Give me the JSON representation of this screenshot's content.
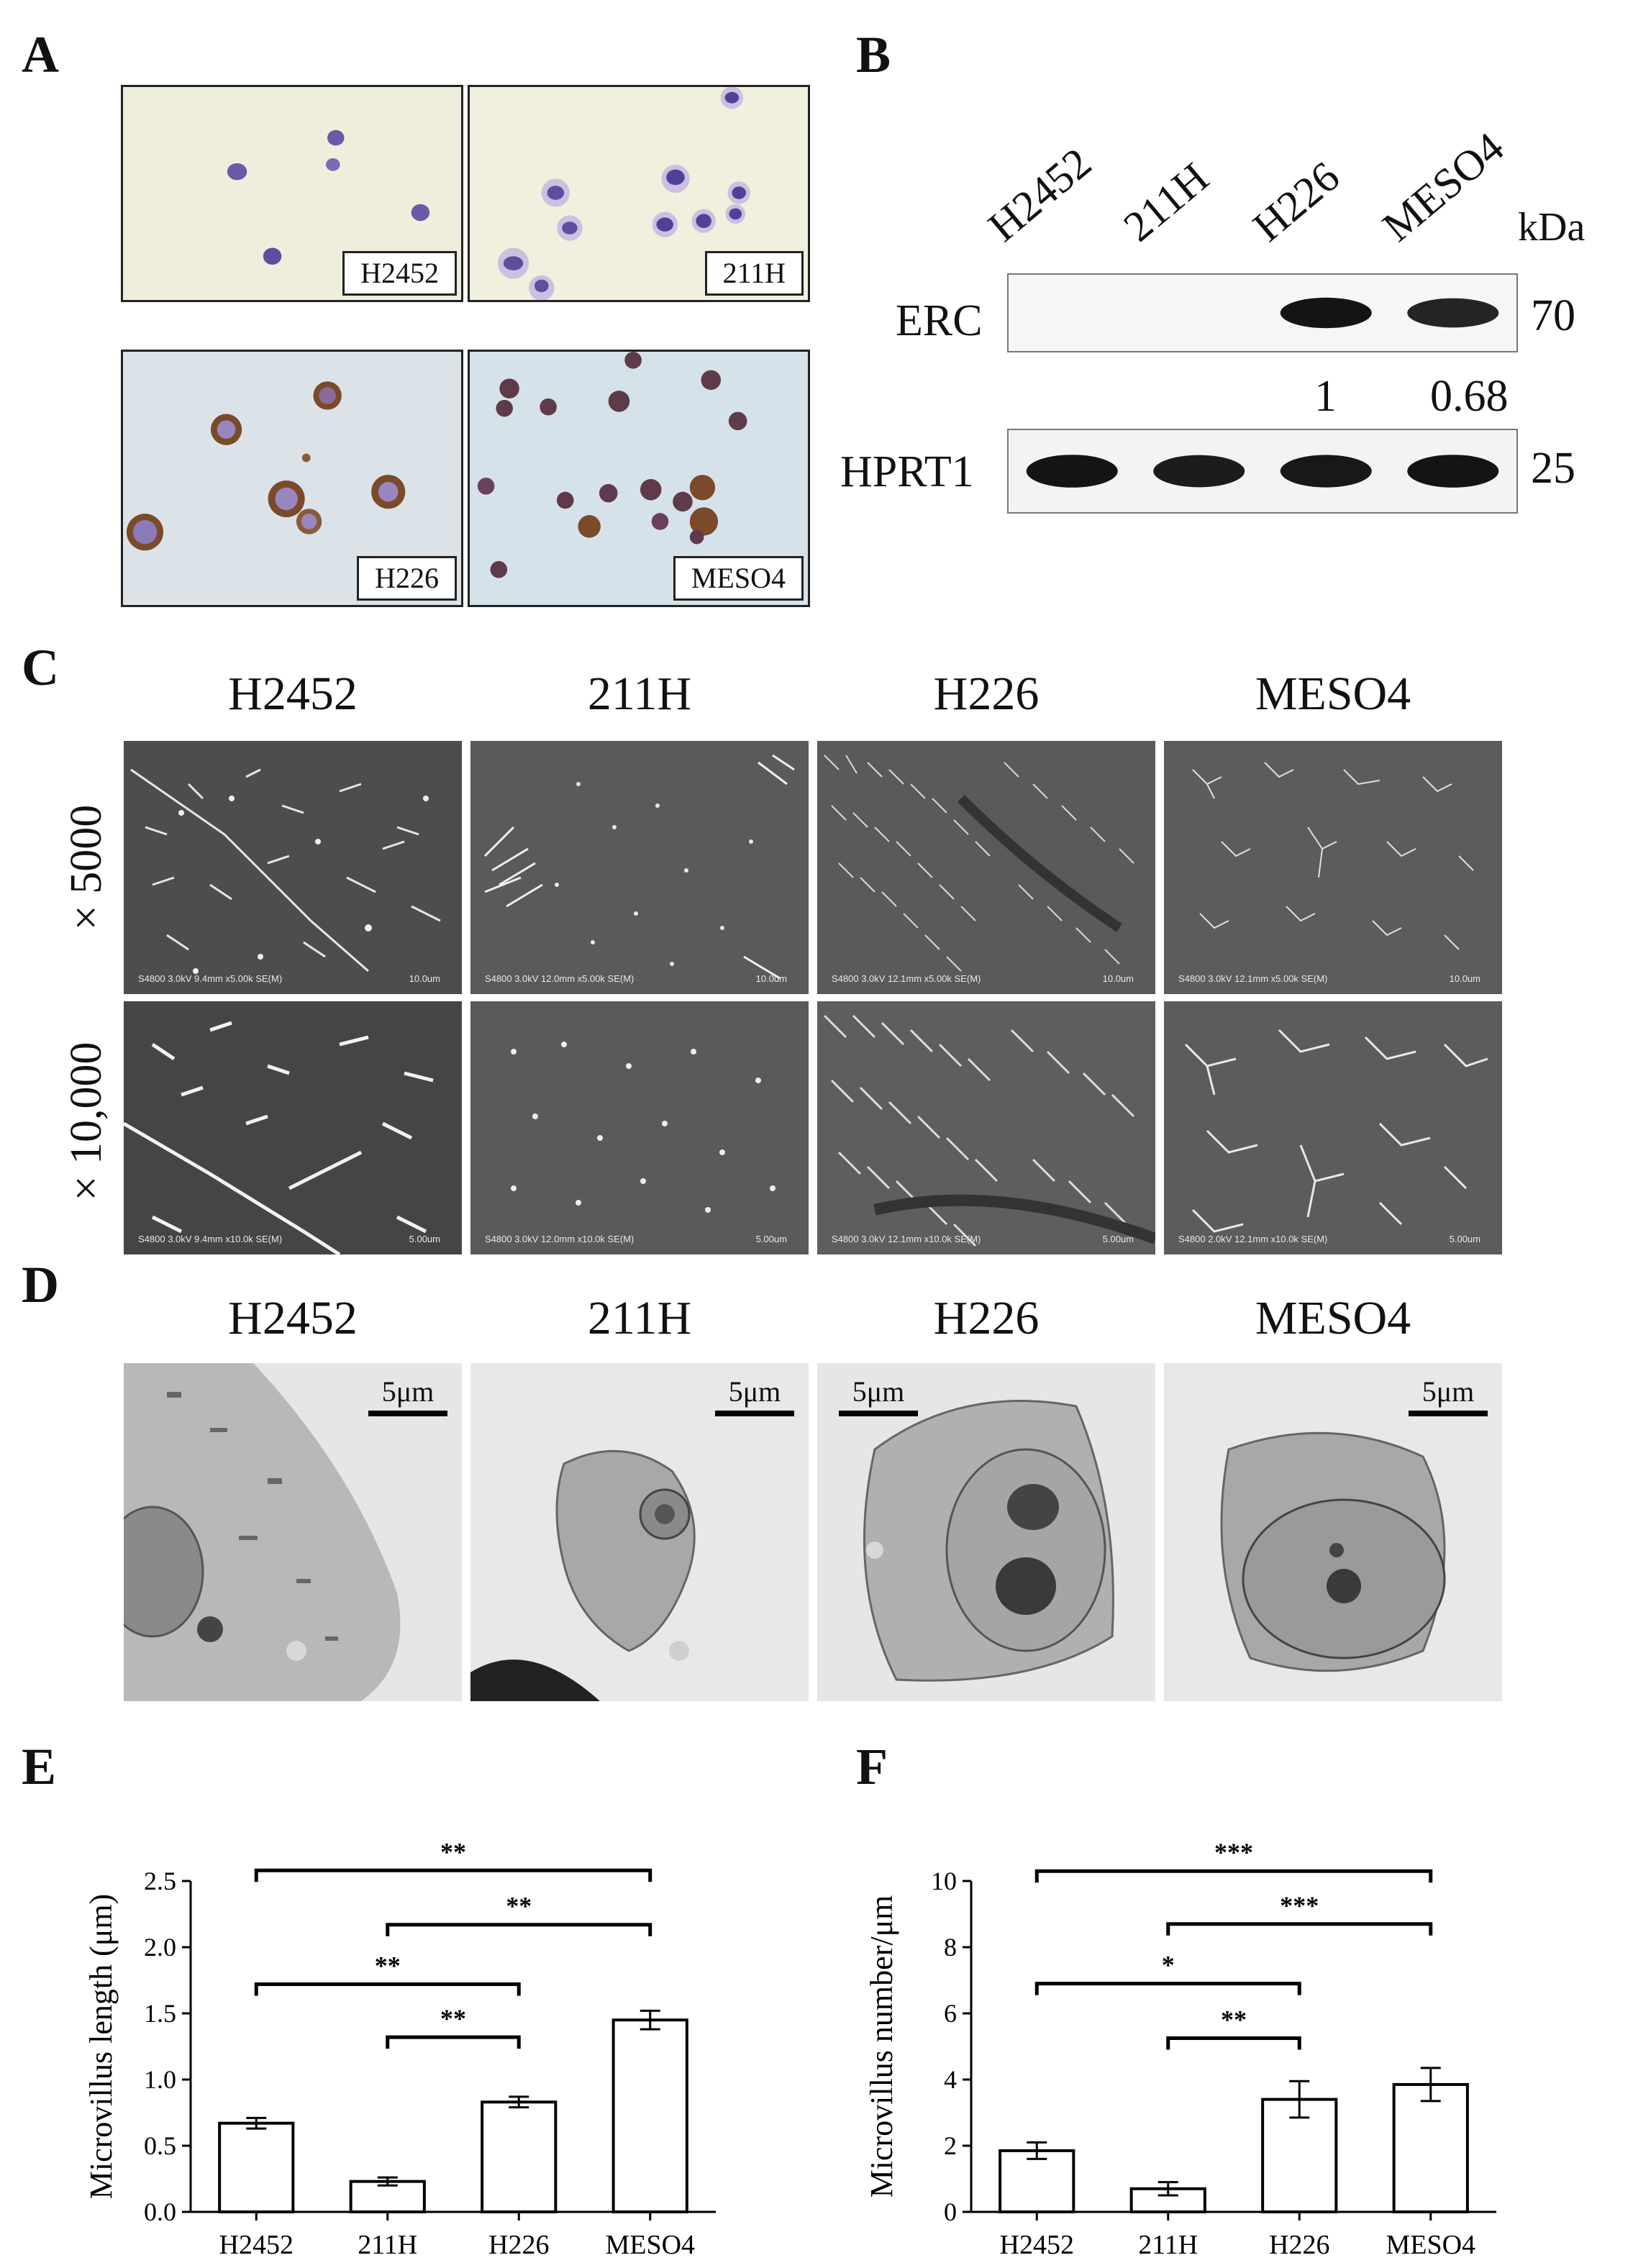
{
  "panels": {
    "A": {
      "letter": "A",
      "images": [
        {
          "label": "H2452"
        },
        {
          "label": "211H"
        },
        {
          "label": "H226"
        },
        {
          "label": "MESO4"
        }
      ]
    },
    "B": {
      "letter": "B",
      "lanes": [
        "H2452",
        "211H",
        "H226",
        "MESO4"
      ],
      "unit": "kDa",
      "rows": [
        {
          "name": "ERC",
          "kda": "70",
          "band_intensity": [
            0,
            0,
            1,
            0.8
          ]
        },
        {
          "name": "HPRT1",
          "kda": "25",
          "band_intensity": [
            1,
            0.9,
            0.95,
            1
          ]
        }
      ],
      "quantification": [
        "1",
        "0.68"
      ]
    },
    "C": {
      "letter": "C",
      "columns": [
        "H2452",
        "211H",
        "H226",
        "MESO4"
      ],
      "rows": [
        "× 5000",
        "× 10,000"
      ],
      "captions": [
        [
          "S4800 3.0kV 9.4mm x5.00k SE(M)",
          "S4800 3.0kV 12.0mm x5.00k SE(M)",
          "S4800 3.0kV 12.1mm x5.00k SE(M)",
          "S4800 3.0kV 12.1mm x5.00k SE(M)"
        ],
        [
          "S4800 3.0kV 9.4mm x10.0k SE(M)",
          "S4800 3.0kV 12.0mm x10.0k SE(M)",
          "S4800 3.0kV 12.1mm x10.0k SE(M)",
          "S4800 2.0kV 12.1mm x10.0k SE(M)"
        ]
      ],
      "scales": [
        [
          "10.0um",
          "10.0um",
          "10.0um",
          "10.0um"
        ],
        [
          "5.00um",
          "5.00um",
          "5.00um",
          "5.00um"
        ]
      ]
    },
    "D": {
      "letter": "D",
      "columns": [
        "H2452",
        "211H",
        "H226",
        "MESO4"
      ],
      "scalebar": "5μm"
    },
    "E": {
      "letter": "E"
    },
    "F": {
      "letter": "F"
    }
  },
  "chart_data": [
    {
      "type": "bar",
      "panel": "E",
      "categories": [
        "H2452",
        "211H",
        "H226",
        "MESO4"
      ],
      "values": [
        0.67,
        0.23,
        0.83,
        1.45
      ],
      "errors": [
        0.04,
        0.03,
        0.04,
        0.07
      ],
      "ylabel": "Microvillus length (μm)",
      "ylim": [
        0,
        2.5
      ],
      "yticks": [
        "0.0",
        "0.5",
        "1.0",
        "1.5",
        "2.0",
        "2.5"
      ],
      "significance": [
        {
          "from": 0,
          "to": 3,
          "y": 2.58,
          "label": "**"
        },
        {
          "from": 1,
          "to": 3,
          "y": 2.17,
          "label": "**"
        },
        {
          "from": 0,
          "to": 2,
          "y": 1.72,
          "label": "**"
        },
        {
          "from": 1,
          "to": 2,
          "y": 1.32,
          "label": "**"
        }
      ]
    },
    {
      "type": "bar",
      "panel": "F",
      "categories": [
        "H2452",
        "211H",
        "H226",
        "MESO4"
      ],
      "values": [
        1.85,
        0.7,
        3.4,
        3.85
      ],
      "errors": [
        0.25,
        0.2,
        0.55,
        0.5
      ],
      "ylabel": "Microvillus number/μm",
      "ylim": [
        0,
        10
      ],
      "yticks": [
        "0",
        "2",
        "4",
        "6",
        "8",
        "10"
      ],
      "significance": [
        {
          "from": 0,
          "to": 3,
          "y": 10.3,
          "label": "***"
        },
        {
          "from": 1,
          "to": 3,
          "y": 8.7,
          "label": "***"
        },
        {
          "from": 0,
          "to": 2,
          "y": 6.9,
          "label": "*"
        },
        {
          "from": 1,
          "to": 2,
          "y": 5.25,
          "label": "**"
        }
      ]
    }
  ]
}
